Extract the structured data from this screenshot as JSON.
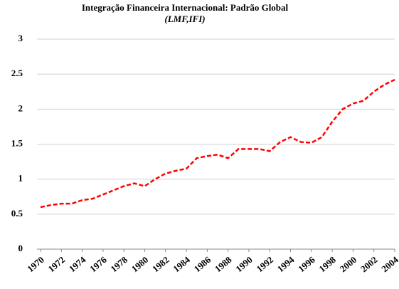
{
  "chart_data": {
    "type": "line",
    "title": "Integração Financeira Internacional: Padrão Global",
    "subtitle": "(LMF,IFI)",
    "x": [
      1970,
      1971,
      1972,
      1973,
      1974,
      1975,
      1976,
      1977,
      1978,
      1979,
      1980,
      1981,
      1982,
      1983,
      1984,
      1985,
      1986,
      1987,
      1988,
      1989,
      1990,
      1991,
      1992,
      1993,
      1994,
      1995,
      1996,
      1997,
      1998,
      1999,
      2000,
      2001,
      2002,
      2003,
      2004
    ],
    "series": [
      {
        "name": "LMF",
        "color": "#ff0000",
        "values": [
          0.6,
          0.63,
          0.65,
          0.65,
          0.7,
          0.72,
          0.78,
          0.84,
          0.9,
          0.94,
          0.9,
          1.0,
          1.08,
          1.12,
          1.15,
          1.3,
          1.33,
          1.35,
          1.3,
          1.43,
          1.43,
          1.43,
          1.4,
          1.53,
          1.6,
          1.53,
          1.52,
          1.6,
          1.82,
          2.0,
          2.08,
          2.12,
          2.25,
          2.35,
          2.42
        ]
      }
    ],
    "xlim": [
      1970,
      2004
    ],
    "xticks": [
      1970,
      1972,
      1974,
      1976,
      1978,
      1980,
      1982,
      1984,
      1986,
      1988,
      1990,
      1992,
      1994,
      1996,
      1998,
      2000,
      2002,
      2004
    ],
    "ylim": [
      0,
      3
    ],
    "yticks": [
      0,
      0.5,
      1,
      1.5,
      2,
      2.5,
      3
    ],
    "grid": true
  }
}
